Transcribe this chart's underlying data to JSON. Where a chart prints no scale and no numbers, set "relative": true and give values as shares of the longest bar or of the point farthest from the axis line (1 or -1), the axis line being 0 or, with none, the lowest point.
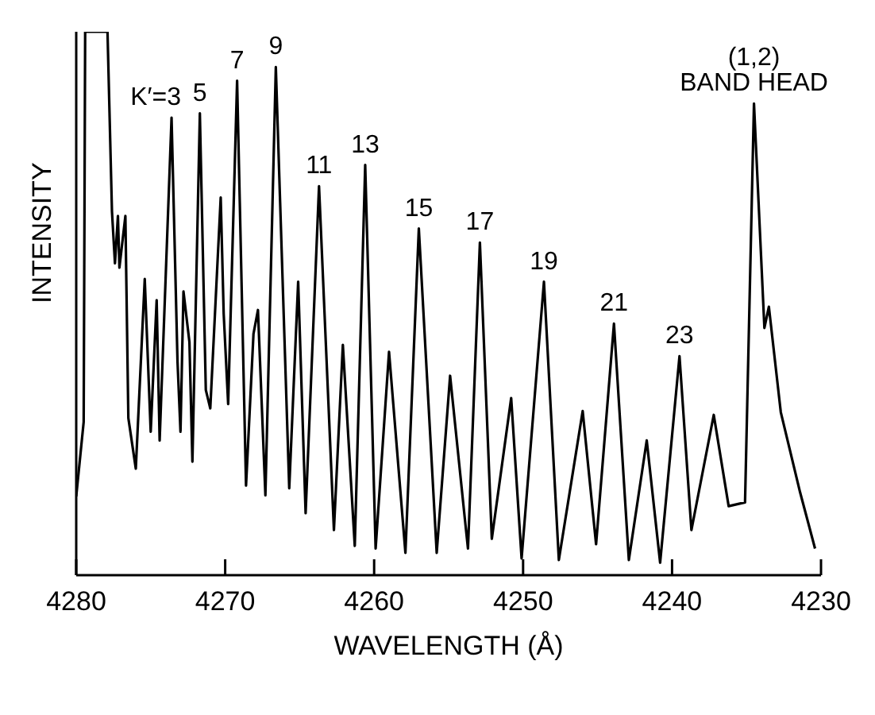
{
  "chart_data": {
    "type": "line",
    "relative": true,
    "xlabel": "WAVELENGTH (Å)",
    "ylabel": "INTENSITY",
    "xlim": [
      4280,
      4230
    ],
    "xticks": [
      4280,
      4270,
      4260,
      4250,
      4240,
      4230
    ],
    "tick_labels": "x",
    "grid": false,
    "legend": false,
    "marker": "none",
    "line_style": "solid",
    "x": [
      4280.0,
      4279.5,
      4279.4,
      4277.9,
      4277.6,
      4277.4,
      4277.2,
      4277.1,
      4276.7,
      4276.5,
      4276.0,
      4275.4,
      4275.0,
      4274.6,
      4274.4,
      4273.6,
      4273.2,
      4273.0,
      4272.8,
      4272.4,
      4272.2,
      4271.7,
      4271.3,
      4271.0,
      4270.3,
      4270.1,
      4269.8,
      4269.2,
      4268.6,
      4268.1,
      4267.8,
      4267.3,
      4266.6,
      4265.7,
      4265.1,
      4264.6,
      4263.7,
      4262.7,
      4262.1,
      4261.3,
      4260.6,
      4259.9,
      4259.0,
      4257.9,
      4257.0,
      4255.8,
      4254.9,
      4253.9,
      4253.7,
      4252.9,
      4252.1,
      4250.8,
      4250.1,
      4248.6,
      4247.6,
      4246.0,
      4245.1,
      4243.9,
      4242.9,
      4241.7,
      4240.8,
      4239.5,
      4238.7,
      4237.2,
      4236.2,
      4235.1,
      4234.5,
      4233.8,
      4233.5,
      4232.7,
      4231.4,
      4230.4
    ],
    "series": [
      {
        "color": "#000000",
        "values": [
          0.145,
          0.282,
          1.0,
          1.0,
          0.669,
          0.574,
          0.661,
          0.566,
          0.661,
          0.289,
          0.196,
          0.545,
          0.264,
          0.506,
          0.248,
          0.842,
          0.393,
          0.264,
          0.522,
          0.429,
          0.209,
          0.85,
          0.341,
          0.307,
          0.695,
          0.481,
          0.315,
          0.91,
          0.165,
          0.444,
          0.488,
          0.147,
          0.935,
          0.16,
          0.54,
          0.114,
          0.716,
          0.083,
          0.424,
          0.054,
          0.755,
          0.049,
          0.411,
          0.041,
          0.638,
          0.041,
          0.367,
          0.101,
          0.049,
          0.612,
          0.067,
          0.326,
          0.031,
          0.54,
          0.028,
          0.302,
          0.057,
          0.463,
          0.028,
          0.248,
          0.023,
          0.403,
          0.083,
          0.295,
          0.127,
          0.134,
          0.868,
          0.455,
          0.494,
          0.3,
          0.152,
          0.049
        ]
      }
    ],
    "annotations": [
      {
        "text": "K′=3",
        "x": 4273.6,
        "y": 0.842
      },
      {
        "text": "5",
        "x": 4271.7,
        "y": 0.85
      },
      {
        "text": "7",
        "x": 4269.2,
        "y": 0.91
      },
      {
        "text": "9",
        "x": 4266.6,
        "y": 0.935
      },
      {
        "text": "11",
        "x": 4263.7,
        "y": 0.716
      },
      {
        "text": "13",
        "x": 4260.6,
        "y": 0.755
      },
      {
        "text": "15",
        "x": 4257.0,
        "y": 0.638
      },
      {
        "text": "17",
        "x": 4252.9,
        "y": 0.612
      },
      {
        "text": "19",
        "x": 4248.6,
        "y": 0.54
      },
      {
        "text": "21",
        "x": 4243.9,
        "y": 0.463
      },
      {
        "text": "23",
        "x": 4239.5,
        "y": 0.403
      },
      {
        "text": "(1,2)\nBAND HEAD",
        "x": 4234.5,
        "y": 0.868
      }
    ]
  }
}
